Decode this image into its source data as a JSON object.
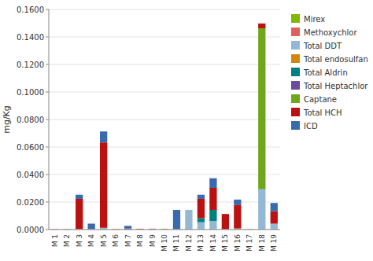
{
  "chart_data": {
    "type": "bar",
    "stacked": true,
    "grid": true,
    "legend": "right",
    "y_label": "mg/Kg",
    "categories": [
      "M 1",
      "M 2",
      "M 3",
      "M 4",
      "M 5",
      "M 6",
      "M 7",
      "M 8",
      "M 9",
      "M 10",
      "M 11",
      "M 12",
      "M 13",
      "M 14",
      "M 15",
      "M 16",
      "M 17",
      "M 18",
      "M 19"
    ],
    "series": [
      {
        "name": "Mirex",
        "color": "#7CB900",
        "values": [
          0.0002,
          0.0002,
          0.0002,
          0.0002,
          0.0002,
          0.0002,
          0.0002,
          0.0002,
          0.0002,
          0.0002,
          0.0002,
          0.0002,
          0.0002,
          0.0002,
          0.0002,
          0.0002,
          0.0002,
          0.0002,
          0.0002
        ]
      },
      {
        "name": "Methoxychlor",
        "color": "#E06060",
        "values": [
          0.0001,
          0.0001,
          0.0001,
          0.0001,
          0.0001,
          0.0001,
          0.0001,
          0.0001,
          0.0001,
          0.0001,
          0.0001,
          0.0001,
          0.0001,
          0.0001,
          0.0001,
          0.0001,
          0.0001,
          0.0001,
          0.0001
        ]
      },
      {
        "name": "Total DDT",
        "color": "#92B8D4",
        "values": [
          0.0,
          0.0,
          0.0,
          0.0,
          0.001,
          0.0,
          0.0,
          0.0,
          0.0,
          0.0,
          0.0,
          0.014,
          0.005,
          0.006,
          0.0,
          0.0005,
          0.0,
          0.029,
          0.004
        ]
      },
      {
        "name": "Total endosulfan",
        "color": "#D4860A",
        "values": [
          0.0,
          0.0,
          0.0,
          0.0,
          0.0,
          0.0002,
          0.0,
          0.0,
          0.0,
          0.0002,
          0.0,
          0.0,
          0.0,
          0.0,
          0.0,
          0.0,
          0.0,
          0.0,
          0.0
        ]
      },
      {
        "name": "Total Aldrin",
        "color": "#008080",
        "values": [
          0.0,
          0.0,
          0.0,
          0.0,
          0.0,
          0.0,
          0.0,
          0.0,
          0.0,
          0.0,
          0.0,
          0.0,
          0.003,
          0.008,
          0.0,
          0.0,
          0.0,
          0.0,
          0.0
        ]
      },
      {
        "name": "Total Heptachlor",
        "color": "#6B4C9A",
        "values": [
          0.0,
          0.0,
          0.0,
          0.0,
          0.0,
          0.0,
          0.0,
          0.0,
          0.0,
          0.0,
          0.0,
          0.0,
          0.0,
          0.0,
          0.0,
          0.0,
          0.0,
          0.0,
          0.0
        ]
      },
      {
        "name": "Captane",
        "color": "#6EA81A",
        "values": [
          0.0,
          0.0,
          0.0,
          0.0,
          0.0,
          0.0,
          0.0,
          0.0,
          0.0,
          0.0,
          0.0,
          0.0,
          0.0,
          0.0,
          0.0,
          0.0,
          0.0,
          0.117,
          0.0
        ]
      },
      {
        "name": "Total HCH",
        "color": "#BB1111",
        "values": [
          0.0,
          0.0,
          0.022,
          0.0,
          0.062,
          0.0,
          0.0004,
          0.0003,
          0.0003,
          0.0001,
          0.0,
          0.0,
          0.014,
          0.016,
          0.011,
          0.017,
          0.0,
          0.0035,
          0.009
        ]
      },
      {
        "name": "ICD",
        "color": "#3A6AAE",
        "values": [
          0.0,
          0.0,
          0.003,
          0.004,
          0.008,
          0.0,
          0.002,
          0.0,
          0.0,
          0.0,
          0.014,
          0.0,
          0.003,
          0.007,
          0.0,
          0.004,
          0.0,
          0.0,
          0.006
        ]
      }
    ],
    "ylim": [
      0,
      0.16
    ],
    "yticks": [
      {
        "value": 0,
        "label": "0.0000"
      },
      {
        "value": 0.02,
        "label": "0.0200"
      },
      {
        "value": 0.04,
        "label": "0.0400"
      },
      {
        "value": 0.06,
        "label": "0.0600"
      },
      {
        "value": 0.08,
        "label": "0.0800"
      },
      {
        "value": 0.1,
        "label": "0.1000"
      },
      {
        "value": 0.12,
        "label": "0.1200"
      },
      {
        "value": 0.14,
        "label": "0.1400"
      },
      {
        "value": 0.16,
        "label": "0.1600"
      }
    ]
  }
}
